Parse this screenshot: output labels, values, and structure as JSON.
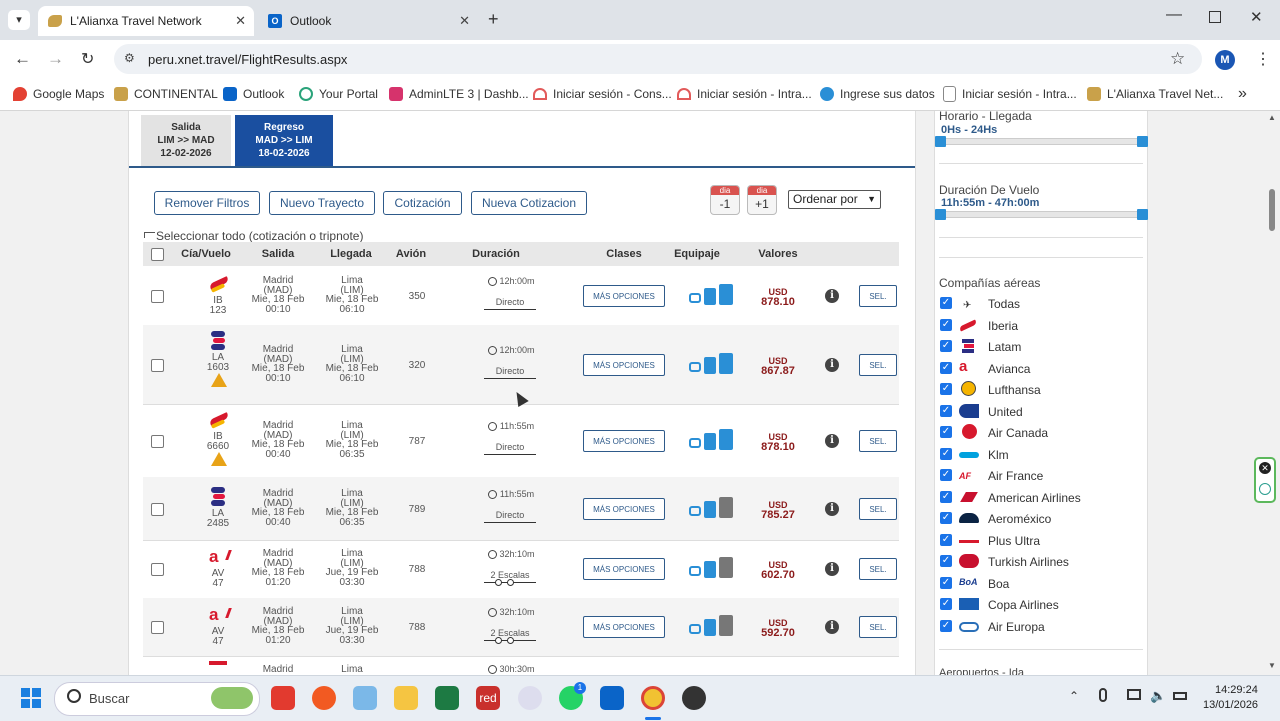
{
  "browser": {
    "tabs": [
      {
        "title": "L'Alianxa Travel Network",
        "active": true
      },
      {
        "title": "Outlook",
        "active": false
      }
    ],
    "url": "peru.xnet.travel/FlightResults.aspx",
    "profile_initial": "M",
    "bookmarks": [
      "Google Maps",
      "CONTINENTAL",
      "Outlook",
      "Your Portal",
      "AdminLTE 3 | Dashb...",
      "Iniciar sesión - Cons...",
      "Iniciar sesión - Intra...",
      "Ingrese sus datos",
      "Iniciar sesión - Intra...",
      "L'Alianxa Travel Net..."
    ]
  },
  "legs": [
    {
      "type": "Salida",
      "route": "LIM >> MAD",
      "date": "12-02-2026",
      "active": false
    },
    {
      "type": "Regreso",
      "route": "MAD >> LIM",
      "date": "18-02-2026",
      "active": true
    }
  ],
  "actions": {
    "remove_filters": "Remover Filtros",
    "new_route": "Nuevo Trayecto",
    "quote": "Cotización",
    "new_quote": "Nueva Cotizacion",
    "day_tag": "dia",
    "day_minus": "-1",
    "day_plus": "+1",
    "sort_label": "Ordenar por"
  },
  "select_all": "Seleccionar todo (cotización o tripnote)",
  "columns": [
    "Cía/Vuelo",
    "Salida",
    "Llegada",
    "Avión",
    "Duración",
    "Clases",
    "Equipaje",
    "Valores"
  ],
  "more_options_label": "MÁS OPCIONES",
  "select_label": "SEL.",
  "flights": [
    {
      "code": "IB",
      "number": "123",
      "logo": "iberia",
      "warning": false,
      "dep_city": "Madrid",
      "dep_iata": "(MAD)",
      "dep_date": "Mie, 18 Feb",
      "dep_time": "00:10",
      "arr_city": "Lima",
      "arr_iata": "(LIM)",
      "arr_date": "Mie, 18 Feb",
      "arr_time": "06:10",
      "aircraft": "350",
      "duration": "12h:00m",
      "stops": "Directo",
      "currency": "USD",
      "price": "878.10",
      "bag_gray": false
    },
    {
      "code": "LA",
      "number": "1603",
      "logo": "latam",
      "warning": true,
      "dep_city": "Madrid",
      "dep_iata": "(MAD)",
      "dep_date": "Mie, 18 Feb",
      "dep_time": "00:10",
      "arr_city": "Lima",
      "arr_iata": "(LIM)",
      "arr_date": "Mie, 18 Feb",
      "arr_time": "06:10",
      "aircraft": "320",
      "duration": "12h:00m",
      "stops": "Directo",
      "currency": "USD",
      "price": "867.87",
      "bag_gray": false
    },
    {
      "code": "IB",
      "number": "6660",
      "logo": "iberia",
      "warning": true,
      "dep_city": "Madrid",
      "dep_iata": "(MAD)",
      "dep_date": "Mie, 18 Feb",
      "dep_time": "00:40",
      "arr_city": "Lima",
      "arr_iata": "(LIM)",
      "arr_date": "Mie, 18 Feb",
      "arr_time": "06:35",
      "aircraft": "787",
      "duration": "11h:55m",
      "stops": "Directo",
      "currency": "USD",
      "price": "878.10",
      "bag_gray": false
    },
    {
      "code": "LA",
      "number": "2485",
      "logo": "latam",
      "warning": false,
      "dep_city": "Madrid",
      "dep_iata": "(MAD)",
      "dep_date": "Mie, 18 Feb",
      "dep_time": "00:40",
      "arr_city": "Lima",
      "arr_iata": "(LIM)",
      "arr_date": "Mie, 18 Feb",
      "arr_time": "06:35",
      "aircraft": "789",
      "duration": "11h:55m",
      "stops": "Directo",
      "currency": "USD",
      "price": "785.27",
      "bag_gray": true
    },
    {
      "code": "AV",
      "number": "47",
      "logo": "avianca",
      "warning": false,
      "dep_city": "Madrid",
      "dep_iata": "(MAD)",
      "dep_date": "Mie, 18 Feb",
      "dep_time": "01:20",
      "arr_city": "Lima",
      "arr_iata": "(LIM)",
      "arr_date": "Jue, 19 Feb",
      "arr_time": "03:30",
      "aircraft": "788",
      "duration": "32h:10m",
      "stops": "2 Escalas",
      "currency": "USD",
      "price": "602.70",
      "bag_gray": true
    },
    {
      "code": "AV",
      "number": "47",
      "logo": "avianca",
      "warning": false,
      "dep_city": "Madrid",
      "dep_iata": "(MAD)",
      "dep_date": "Mie, 18 Feb",
      "dep_time": "01:20",
      "arr_city": "Lima",
      "arr_iata": "(LIM)",
      "arr_date": "Jue, 19 Feb",
      "arr_time": "03:30",
      "aircraft": "788",
      "duration": "32h:10m",
      "stops": "2 Escalas",
      "currency": "USD",
      "price": "592.70",
      "bag_gray": true
    }
  ],
  "partial_row": {
    "dep_city": "Madrid",
    "arr_city": "Lima",
    "duration": "30h:30m"
  },
  "filters": {
    "arrival_label": "Horario - Llegada",
    "arrival_range": "0Hs - 24Hs",
    "duration_label": "Duración De Vuelo",
    "duration_range": "11h:55m - 47h:00m",
    "airlines_label": "Compañías aéreas",
    "airlines": [
      "Todas",
      "Iberia",
      "Latam",
      "Avianca",
      "Lufthansa",
      "United",
      "Air Canada",
      "Klm",
      "Air France",
      "American Airlines",
      "Aeroméxico",
      "Plus Ultra",
      "Turkish Airlines",
      "Boa",
      "Copa Airlines",
      "Air Europa"
    ],
    "next_section_partial": "Aeropuertos - Ida"
  },
  "taskbar": {
    "search_placeholder": "Buscar",
    "time": "14:29:24",
    "date": "13/01/2026",
    "app_labels": [
      "red"
    ],
    "badges": [
      "1"
    ]
  },
  "colors": {
    "accent": "#2e5a8a",
    "active_leg": "#1a4fa0",
    "price": "#8b1a1a",
    "luggage": "#2a8fd6",
    "checkbox": "#1a73e8"
  }
}
